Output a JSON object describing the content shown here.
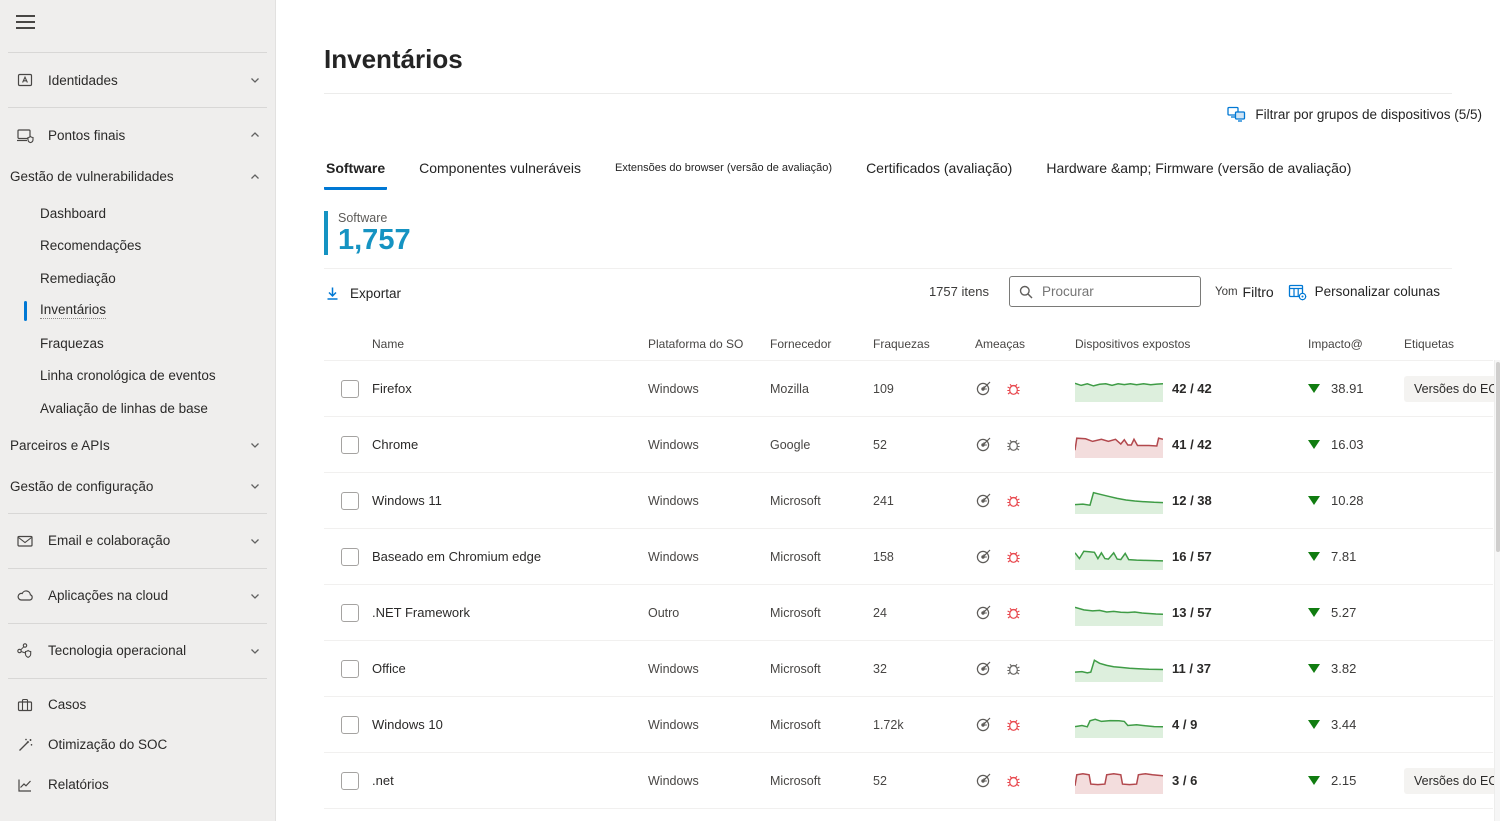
{
  "colors": {
    "accent": "#0078d4",
    "count_accent": "#1593c2",
    "bug_red": "#e8494f",
    "impact_green": "#107c10",
    "trend": {
      "green": {
        "stroke": "#3f9c46",
        "fill": "#ddefdd"
      },
      "red": {
        "stroke": "#b2484d",
        "fill": "#f3dddd"
      }
    }
  },
  "sidebar": {
    "items": [
      {
        "label": "Identidades"
      },
      {
        "label": "Pontos finais"
      },
      {
        "label": "Gestão de vulnerabilidades"
      },
      {
        "label": "Dashboard"
      },
      {
        "label": "Recomendações"
      },
      {
        "label": "Remediação"
      },
      {
        "label": "Inventários"
      },
      {
        "label": "Fraquezas"
      },
      {
        "label": "Linha cronológica de eventos"
      },
      {
        "label": "Avaliação de linhas de base"
      },
      {
        "label": "Parceiros e APIs"
      },
      {
        "label": "Gestão de configuração"
      },
      {
        "label": "Email e colaboração"
      },
      {
        "label": "Aplicações na cloud"
      },
      {
        "label": "Tecnologia operacional"
      },
      {
        "label": "Casos"
      },
      {
        "label": "Otimização do SOC"
      },
      {
        "label": "Relatórios"
      }
    ]
  },
  "header": {
    "title": "Inventários",
    "filter_groups": "Filtrar por grupos de dispositivos (5/5)"
  },
  "tabs": [
    {
      "label": "Software"
    },
    {
      "label": "Componentes vulneráveis"
    },
    {
      "label": "Extensões do browser (versão de avaliação)"
    },
    {
      "label": "Certificados (avaliação)"
    },
    {
      "label": "Hardware &amp; Firmware (versão de avaliação)"
    }
  ],
  "summary": {
    "label": "Software",
    "count": "1,757"
  },
  "toolbar": {
    "export_label": "Exportar",
    "items_count": "1757 itens",
    "search_placeholder": "Procurar",
    "filter_glyph": "Yom",
    "filter_label": "Filtro",
    "customize_columns_label": "Personalizar colunas"
  },
  "table": {
    "headers": [
      "Name",
      "Plataforma do SO",
      "Fornecedor",
      "Fraquezas",
      "Ameaças",
      "Dispositivos expostos",
      "Impacto@",
      "Etiquetas"
    ],
    "rows": [
      {
        "name": "Firefox",
        "platform": "Windows",
        "vendor": "Mozilla",
        "weaknesses": "109",
        "bug": "red",
        "trend": {
          "color": "green",
          "points": [
            [
              0,
              28
            ],
            [
              7,
              36
            ],
            [
              14,
              30
            ],
            [
              21,
              38
            ],
            [
              28,
              32
            ],
            [
              35,
              30
            ],
            [
              42,
              36
            ],
            [
              49,
              30
            ],
            [
              56,
              33
            ],
            [
              63,
              30
            ],
            [
              70,
              34
            ],
            [
              78,
              30
            ],
            [
              86,
              34
            ],
            [
              93,
              31
            ],
            [
              100,
              30
            ]
          ]
        },
        "exposed": "42 / 42",
        "impact": "38.91",
        "tag": "Versões do EOS"
      },
      {
        "name": "Chrome",
        "platform": "Windows",
        "vendor": "Google",
        "weaknesses": "52",
        "bug": "gray",
        "trend": {
          "color": "red",
          "points": [
            [
              0,
              70
            ],
            [
              2,
              24
            ],
            [
              12,
              26
            ],
            [
              20,
              36
            ],
            [
              30,
              28
            ],
            [
              38,
              36
            ],
            [
              46,
              28
            ],
            [
              52,
              46
            ],
            [
              56,
              30
            ],
            [
              60,
              50
            ],
            [
              64,
              50
            ],
            [
              67,
              28
            ],
            [
              71,
              52
            ],
            [
              84,
              52
            ],
            [
              93,
              54
            ],
            [
              95,
              24
            ],
            [
              100,
              28
            ]
          ]
        },
        "exposed": "41 / 42",
        "impact": "16.03"
      },
      {
        "name": "Windows 11",
        "platform": "Windows",
        "vendor": "Microsoft",
        "weaknesses": "241",
        "bug": "red",
        "trend": {
          "color": "green",
          "points": [
            [
              0,
              64
            ],
            [
              9,
              62
            ],
            [
              17,
              66
            ],
            [
              21,
              18
            ],
            [
              28,
              24
            ],
            [
              38,
              32
            ],
            [
              48,
              40
            ],
            [
              58,
              46
            ],
            [
              68,
              50
            ],
            [
              80,
              53
            ],
            [
              90,
              55
            ],
            [
              100,
              56
            ]
          ]
        },
        "exposed": "12 / 38",
        "impact": "10.28"
      },
      {
        "name": "Baseado em Chromium edge",
        "platform": "Windows",
        "vendor": "Microsoft",
        "weaknesses": "158",
        "bug": "red",
        "trend": {
          "color": "green",
          "points": [
            [
              0,
              34
            ],
            [
              5,
              56
            ],
            [
              10,
              28
            ],
            [
              16,
              30
            ],
            [
              22,
              32
            ],
            [
              26,
              56
            ],
            [
              30,
              34
            ],
            [
              34,
              56
            ],
            [
              38,
              58
            ],
            [
              44,
              34
            ],
            [
              48,
              58
            ],
            [
              52,
              60
            ],
            [
              57,
              36
            ],
            [
              61,
              60
            ],
            [
              70,
              62
            ],
            [
              80,
              63
            ],
            [
              90,
              64
            ],
            [
              100,
              65
            ]
          ]
        },
        "exposed": "16 / 57",
        "impact": "7.81"
      },
      {
        "name": ".NET Framework",
        "platform": "Outro",
        "vendor": "Microsoft",
        "weaknesses": "24",
        "bug": "red",
        "trend": {
          "color": "green",
          "points": [
            [
              0,
              28
            ],
            [
              10,
              38
            ],
            [
              20,
              42
            ],
            [
              28,
              40
            ],
            [
              36,
              46
            ],
            [
              44,
              44
            ],
            [
              52,
              47
            ],
            [
              60,
              48
            ],
            [
              68,
              46
            ],
            [
              76,
              50
            ],
            [
              84,
              52
            ],
            [
              92,
              54
            ],
            [
              100,
              55
            ]
          ]
        },
        "exposed": "13 / 57",
        "impact": "5.27"
      },
      {
        "name": "Office",
        "platform": "Windows",
        "vendor": "Microsoft",
        "weaknesses": "32",
        "bug": "gray",
        "trend": {
          "color": "green",
          "points": [
            [
              0,
              62
            ],
            [
              8,
              60
            ],
            [
              14,
              65
            ],
            [
              18,
              62
            ],
            [
              22,
              16
            ],
            [
              28,
              28
            ],
            [
              36,
              36
            ],
            [
              44,
              41
            ],
            [
              52,
              44
            ],
            [
              62,
              47
            ],
            [
              72,
              49
            ],
            [
              84,
              51
            ],
            [
              100,
              52
            ]
          ]
        },
        "exposed": "11 / 37",
        "impact": "3.82"
      },
      {
        "name": "Windows 10",
        "platform": "Windows",
        "vendor": "Microsoft",
        "weaknesses": "1.72k",
        "bug": "red",
        "trend": {
          "color": "green",
          "points": [
            [
              0,
              56
            ],
            [
              8,
              52
            ],
            [
              14,
              57
            ],
            [
              17,
              34
            ],
            [
              23,
              28
            ],
            [
              30,
              36
            ],
            [
              40,
              33
            ],
            [
              50,
              34
            ],
            [
              56,
              36
            ],
            [
              60,
              52
            ],
            [
              70,
              49
            ],
            [
              80,
              53
            ],
            [
              90,
              56
            ],
            [
              100,
              57
            ]
          ]
        },
        "exposed": "4 / 9",
        "impact": "3.44"
      },
      {
        "name": ".net",
        "platform": "Windows",
        "vendor": "Microsoft",
        "weaknesses": "52",
        "bug": "red",
        "trend": {
          "color": "red",
          "points": [
            [
              0,
              68
            ],
            [
              2,
              26
            ],
            [
              9,
              22
            ],
            [
              16,
              26
            ],
            [
              18,
              62
            ],
            [
              26,
              64
            ],
            [
              34,
              62
            ],
            [
              36,
              26
            ],
            [
              44,
              22
            ],
            [
              52,
              26
            ],
            [
              54,
              62
            ],
            [
              62,
              64
            ],
            [
              70,
              62
            ],
            [
              72,
              26
            ],
            [
              80,
              22
            ],
            [
              88,
              26
            ],
            [
              100,
              30
            ]
          ]
        },
        "exposed": "3 / 6",
        "impact": "2.15",
        "tag": "Versões do EOS"
      }
    ]
  }
}
